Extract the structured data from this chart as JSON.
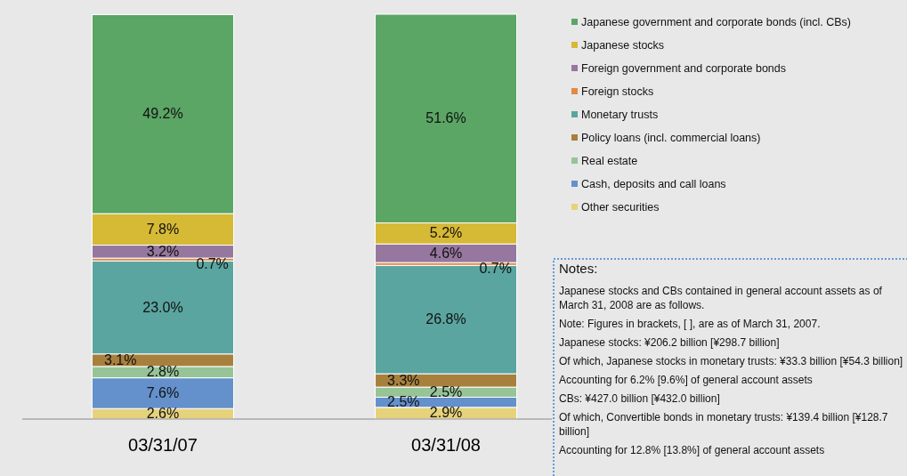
{
  "chart_data": {
    "type": "bar",
    "stacked": true,
    "legend": "right",
    "categories": [
      "03/31/07",
      "03/31/08"
    ],
    "series": [
      {
        "name": "Other securities",
        "color": "#e6d27a",
        "values": [
          2.6,
          2.9
        ],
        "value_labels": [
          "2.6%",
          "2.9%"
        ]
      },
      {
        "name": "Cash, deposits and call loans",
        "color": "#6490cc",
        "values": [
          7.6,
          2.5
        ],
        "value_labels": [
          "7.6%",
          "2.5%"
        ]
      },
      {
        "name": "Real estate",
        "color": "#96c497",
        "values": [
          2.8,
          2.5
        ],
        "value_labels": [
          "2.8%",
          "2.5%"
        ]
      },
      {
        "name": "Policy loans (incl. commercial loans)",
        "color": "#a8803e",
        "values": [
          3.1,
          3.3
        ],
        "value_labels": [
          "3.1%",
          "3.3%"
        ]
      },
      {
        "name": "Monetary trusts",
        "color": "#5aa5a0",
        "values": [
          23.0,
          26.8
        ],
        "value_labels": [
          "23.0%",
          "26.8%"
        ]
      },
      {
        "name": "Foreign stocks",
        "color": "#e08a45",
        "values": [
          0.7,
          0.7
        ],
        "value_labels": [
          "0.7%",
          "0.7%"
        ]
      },
      {
        "name": "Foreign government and corporate bonds",
        "color": "#95779f",
        "values": [
          3.2,
          4.6
        ],
        "value_labels": [
          "3.2%",
          "4.6%"
        ]
      },
      {
        "name": "Japanese stocks",
        "color": "#d6b935",
        "values": [
          7.8,
          5.2
        ],
        "value_labels": [
          "7.8%",
          "5.2%"
        ]
      },
      {
        "name": "Japanese government and corporate bonds (incl. CBs)",
        "color": "#5ba565",
        "values": [
          49.2,
          51.6
        ],
        "value_labels": [
          "49.2%",
          "51.6%"
        ]
      }
    ],
    "annotations": [
      "Notes:",
      "Japanese stocks and CBs contained in general account assets as of March 31, 2008 are as follows.",
      "Note: Figures in brackets, [ ], are as of March 31, 2007.",
      "Japanese stocks: ¥206.2 billion [¥298.7 billion]",
      "Of which, Japanese stocks in monetary trusts: ¥33.3 billion [¥54.3 billion]",
      "Accounting for 6.2% [9.6%] of general account assets",
      "CBs: ¥427.0 billion [¥432.0 billion]",
      "Of which, Convertible bonds in monetary trusts: ¥139.4 billion [¥128.7 billion]",
      "Accounting for 12.8% [13.8%] of general account assets"
    ]
  }
}
